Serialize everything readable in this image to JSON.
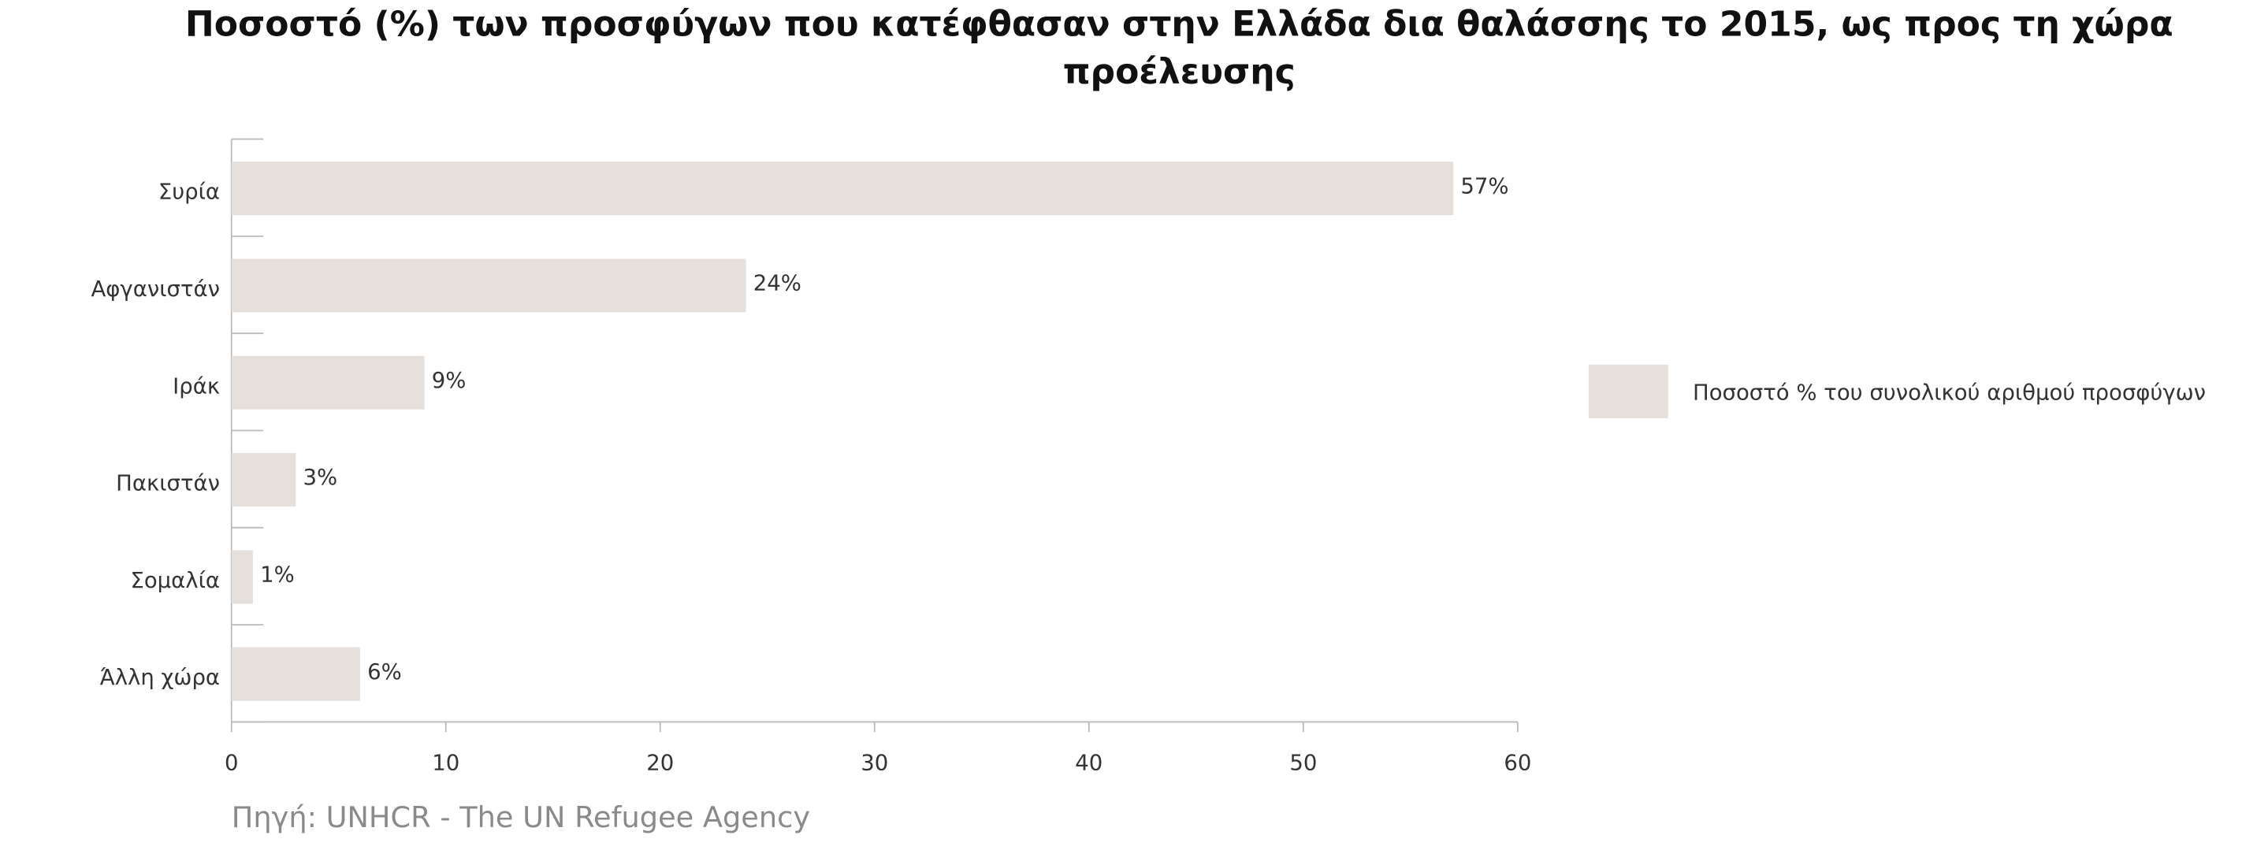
{
  "chart_data": {
    "type": "hbar",
    "title": "Ποσοστό (%) των προσφύγων που κατέφθασαν στην Ελλάδα δια θαλάσσης  το 2015, ως προς τη χώρα",
    "subtitle": "προέλευσης",
    "categories": [
      "Συρία",
      "Αφγανιστάν",
      "Ιράκ",
      "Πακιστάν",
      "Σομαλία",
      "Άλλη χώρα"
    ],
    "series": [
      {
        "name": "Ποσοστό % του συνολικού αριθμού προσφύγων",
        "color": "#e5e0dc",
        "values": [
          57,
          24,
          9,
          3,
          1,
          6
        ],
        "value_labels": [
          "57%",
          "24%",
          "9%",
          "3%",
          "1%",
          "6%"
        ]
      }
    ],
    "xlim": [
      0,
      60
    ],
    "xticks": [
      0,
      10,
      20,
      30,
      40,
      50,
      60
    ],
    "legend": "right",
    "source": "Πηγή: UNHCR - The UN Refugee Agency"
  }
}
